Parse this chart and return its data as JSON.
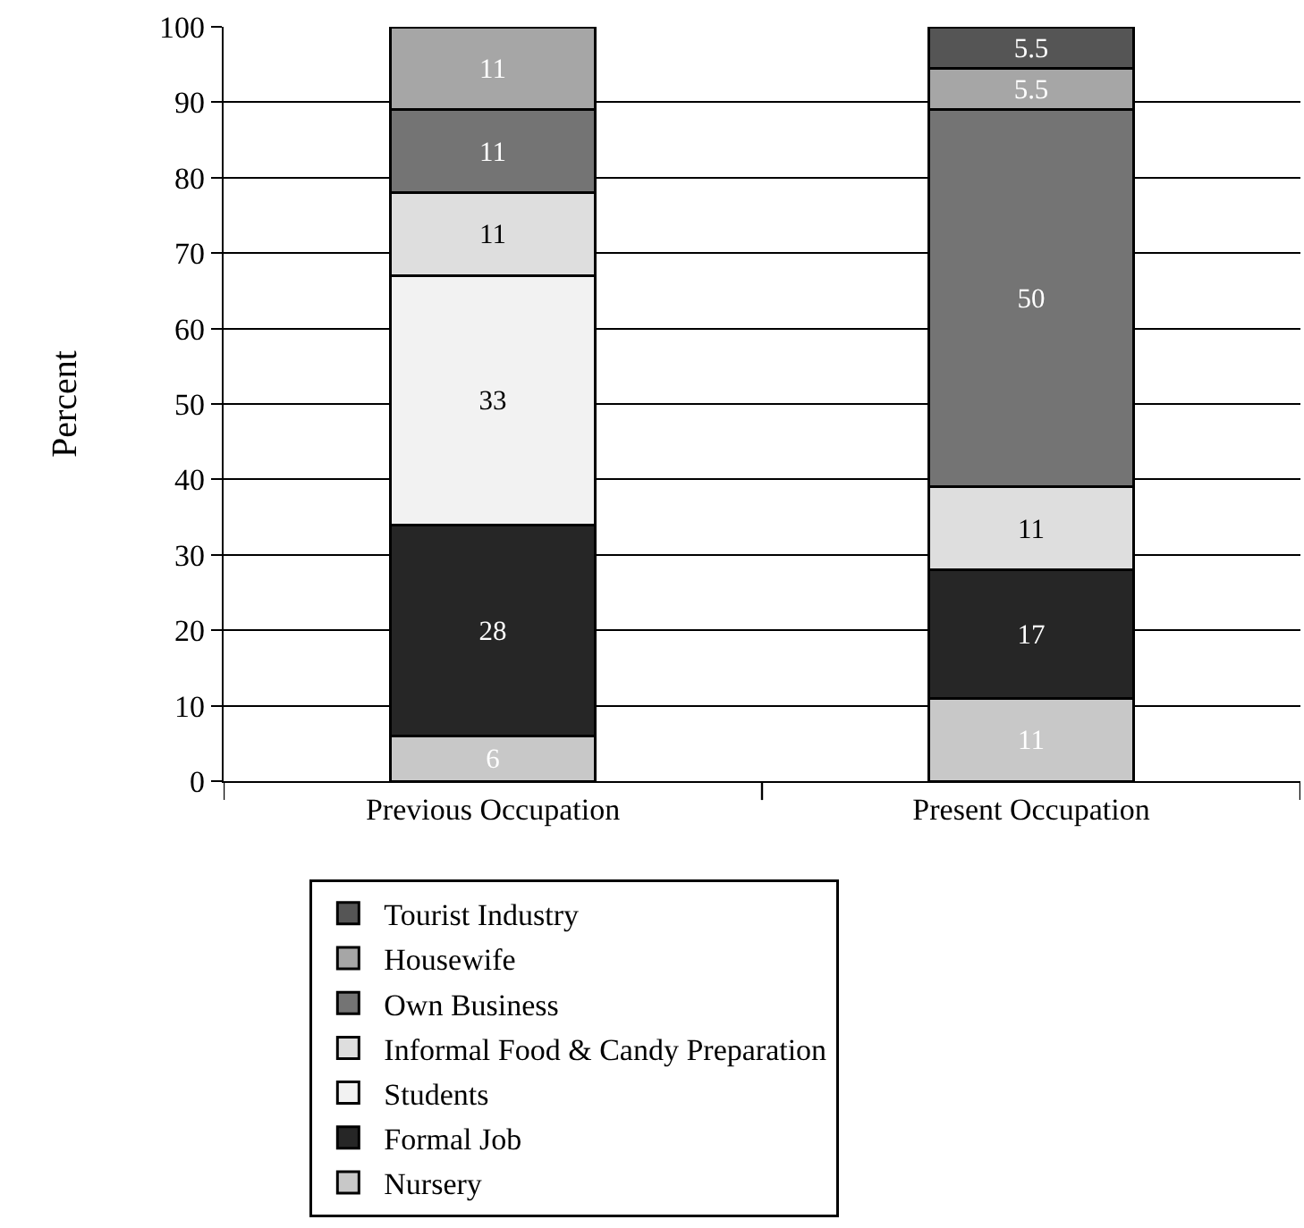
{
  "chart_data": {
    "type": "bar",
    "stacked": true,
    "ylabel": "Percent",
    "categories": [
      "Previous Occupation",
      "Present Occupation"
    ],
    "series": [
      {
        "name": "Nursery",
        "color": "#c8c8c8",
        "values": [
          6,
          11
        ]
      },
      {
        "name": "Formal Job",
        "color": "#262626",
        "values": [
          28,
          17
        ]
      },
      {
        "name": "Students",
        "color": "#f2f2f2",
        "values": [
          33,
          null
        ]
      },
      {
        "name": "Informal Food & Candy Preparation",
        "color": "#dedede",
        "values": [
          11,
          11
        ]
      },
      {
        "name": "Own Business",
        "color": "#747474",
        "values": [
          11,
          50
        ]
      },
      {
        "name": "Housewife",
        "color": "#a6a6a6",
        "values": [
          11,
          5.5
        ]
      },
      {
        "name": "Tourist Industry",
        "color": "#555555",
        "values": [
          null,
          5.5
        ]
      }
    ],
    "ylim": [
      0,
      100
    ],
    "yticks": [
      0,
      10,
      20,
      30,
      40,
      50,
      60,
      70,
      80,
      90,
      100
    ],
    "grid": "y",
    "legend": "bottom",
    "data_labels": true
  }
}
